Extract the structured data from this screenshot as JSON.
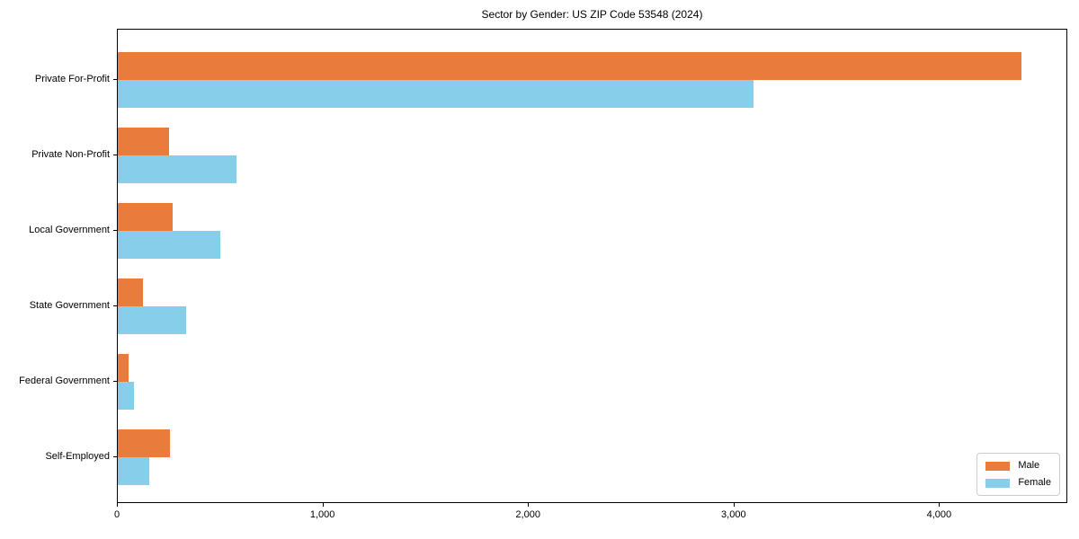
{
  "chart_data": {
    "type": "bar",
    "orientation": "horizontal",
    "title": "Sector by Gender: US ZIP Code 53548 (2024)",
    "categories": [
      "Private For-Profit",
      "Private Non-Profit",
      "Local Government",
      "State Government",
      "Federal Government",
      "Self-Employed"
    ],
    "series": [
      {
        "name": "Male",
        "color": "#E97B3D",
        "values": [
          4396,
          249,
          266,
          122,
          51,
          252
        ]
      },
      {
        "name": "Female",
        "color": "#87CEEB",
        "values": [
          3094,
          577,
          500,
          332,
          77,
          154
        ]
      }
    ],
    "xlabel": "",
    "ylabel": "",
    "xlim": [
      0,
      4624
    ],
    "x_ticks": [
      0,
      1000,
      2000,
      3000,
      4000
    ],
    "x_tick_labels": [
      "0",
      "1,000",
      "2,000",
      "3,000",
      "4,000"
    ],
    "grid": false,
    "legend": {
      "position": "lower-right",
      "entries": [
        {
          "label": "Male",
          "color": "#E97B3D"
        },
        {
          "label": "Female",
          "color": "#87CEEB"
        }
      ]
    },
    "colors": {
      "male": "#E97B3D",
      "female": "#87CEEB",
      "spine": "#000000",
      "text": "#000000",
      "legend_border": "#cccccc",
      "background": "#ffffff"
    }
  }
}
